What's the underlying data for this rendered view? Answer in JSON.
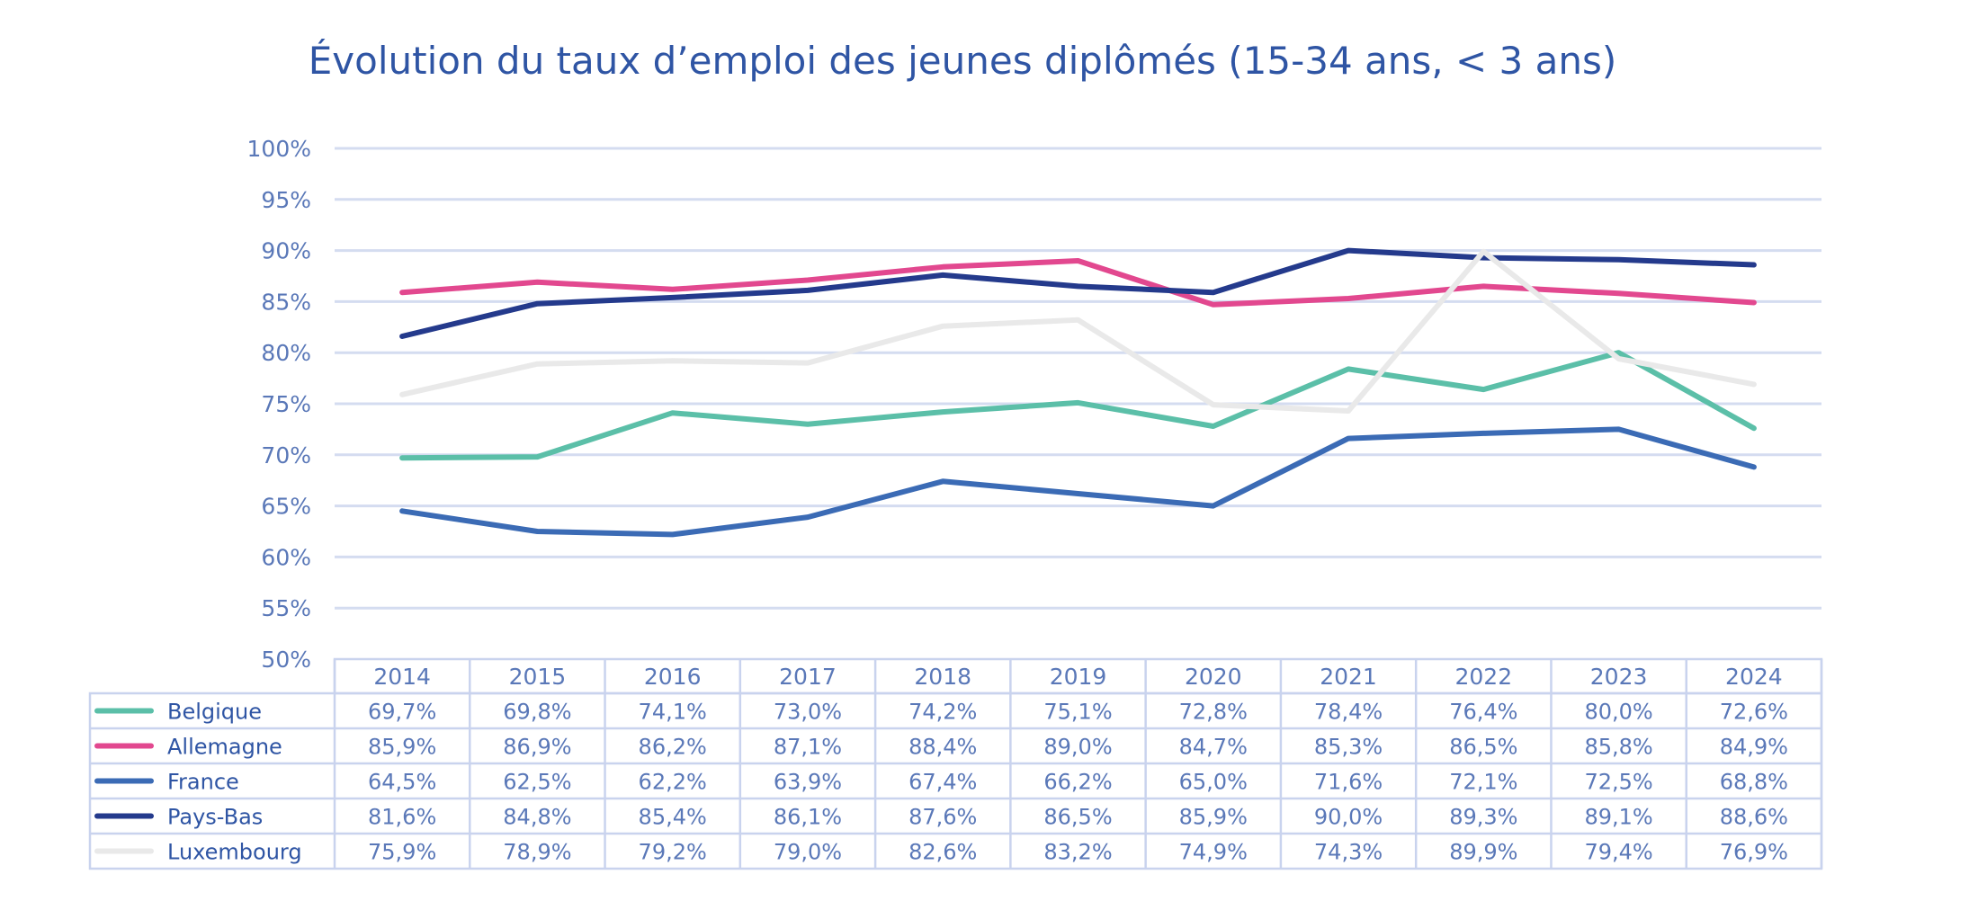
{
  "chart_data": {
    "type": "line",
    "title": "Évolution du taux d’emploi des jeunes diplômés (15-34 ans, < 3 ans)",
    "xlabel": "",
    "ylabel": "",
    "categories": [
      "2014",
      "2015",
      "2016",
      "2017",
      "2018",
      "2019",
      "2020",
      "2021",
      "2022",
      "2023",
      "2024"
    ],
    "ylim": [
      50,
      100
    ],
    "yticks": [
      50,
      55,
      60,
      65,
      70,
      75,
      80,
      85,
      90,
      95,
      100
    ],
    "ytick_labels": [
      "50%",
      "55%",
      "60%",
      "65%",
      "70%",
      "75%",
      "80%",
      "85%",
      "90%",
      "95%",
      "100%"
    ],
    "grid": true,
    "legend_placement": "data-table-left",
    "series": [
      {
        "name": "Belgique",
        "color": "#5bbfa8",
        "values": [
          69.7,
          69.8,
          74.1,
          73.0,
          74.2,
          75.1,
          72.8,
          78.4,
          76.4,
          80.0,
          72.6
        ],
        "labels": [
          "69,7%",
          "69,8%",
          "74,1%",
          "73,0%",
          "74,2%",
          "75,1%",
          "72,8%",
          "78,4%",
          "76,4%",
          "80,0%",
          "72,6%"
        ]
      },
      {
        "name": "Allemagne",
        "color": "#e2488f",
        "values": [
          85.9,
          86.9,
          86.2,
          87.1,
          88.4,
          89.0,
          84.7,
          85.3,
          86.5,
          85.8,
          84.9
        ],
        "labels": [
          "85,9%",
          "86,9%",
          "86,2%",
          "87,1%",
          "88,4%",
          "89,0%",
          "84,7%",
          "85,3%",
          "86,5%",
          "85,8%",
          "84,9%"
        ]
      },
      {
        "name": "France",
        "color": "#3b6bb5",
        "values": [
          64.5,
          62.5,
          62.2,
          63.9,
          67.4,
          66.2,
          65.0,
          71.6,
          72.1,
          72.5,
          68.8
        ],
        "labels": [
          "64,5%",
          "62,5%",
          "62,2%",
          "63,9%",
          "67,4%",
          "66,2%",
          "65,0%",
          "71,6%",
          "72,1%",
          "72,5%",
          "68,8%"
        ]
      },
      {
        "name": "Pays-Bas",
        "color": "#243a8c",
        "values": [
          81.6,
          84.8,
          85.4,
          86.1,
          87.6,
          86.5,
          85.9,
          90.0,
          89.3,
          89.1,
          88.6
        ],
        "labels": [
          "81,6%",
          "84,8%",
          "85,4%",
          "86,1%",
          "87,6%",
          "86,5%",
          "85,9%",
          "90,0%",
          "89,3%",
          "89,1%",
          "88,6%"
        ]
      },
      {
        "name": "Luxembourg",
        "color": "#e9e9e9",
        "values": [
          75.9,
          78.9,
          79.2,
          79.0,
          82.6,
          83.2,
          74.9,
          74.3,
          89.9,
          79.4,
          76.9
        ],
        "labels": [
          "75,9%",
          "78,9%",
          "79,2%",
          "79,0%",
          "82,6%",
          "83,2%",
          "74,9%",
          "74,3%",
          "89,9%",
          "79,4%",
          "76,9%"
        ]
      }
    ]
  },
  "colors": {
    "title": "#2f55a4",
    "axis_text": "#5a78b8",
    "grid": "#d4dcf0",
    "table_border": "#c9d3ee"
  }
}
